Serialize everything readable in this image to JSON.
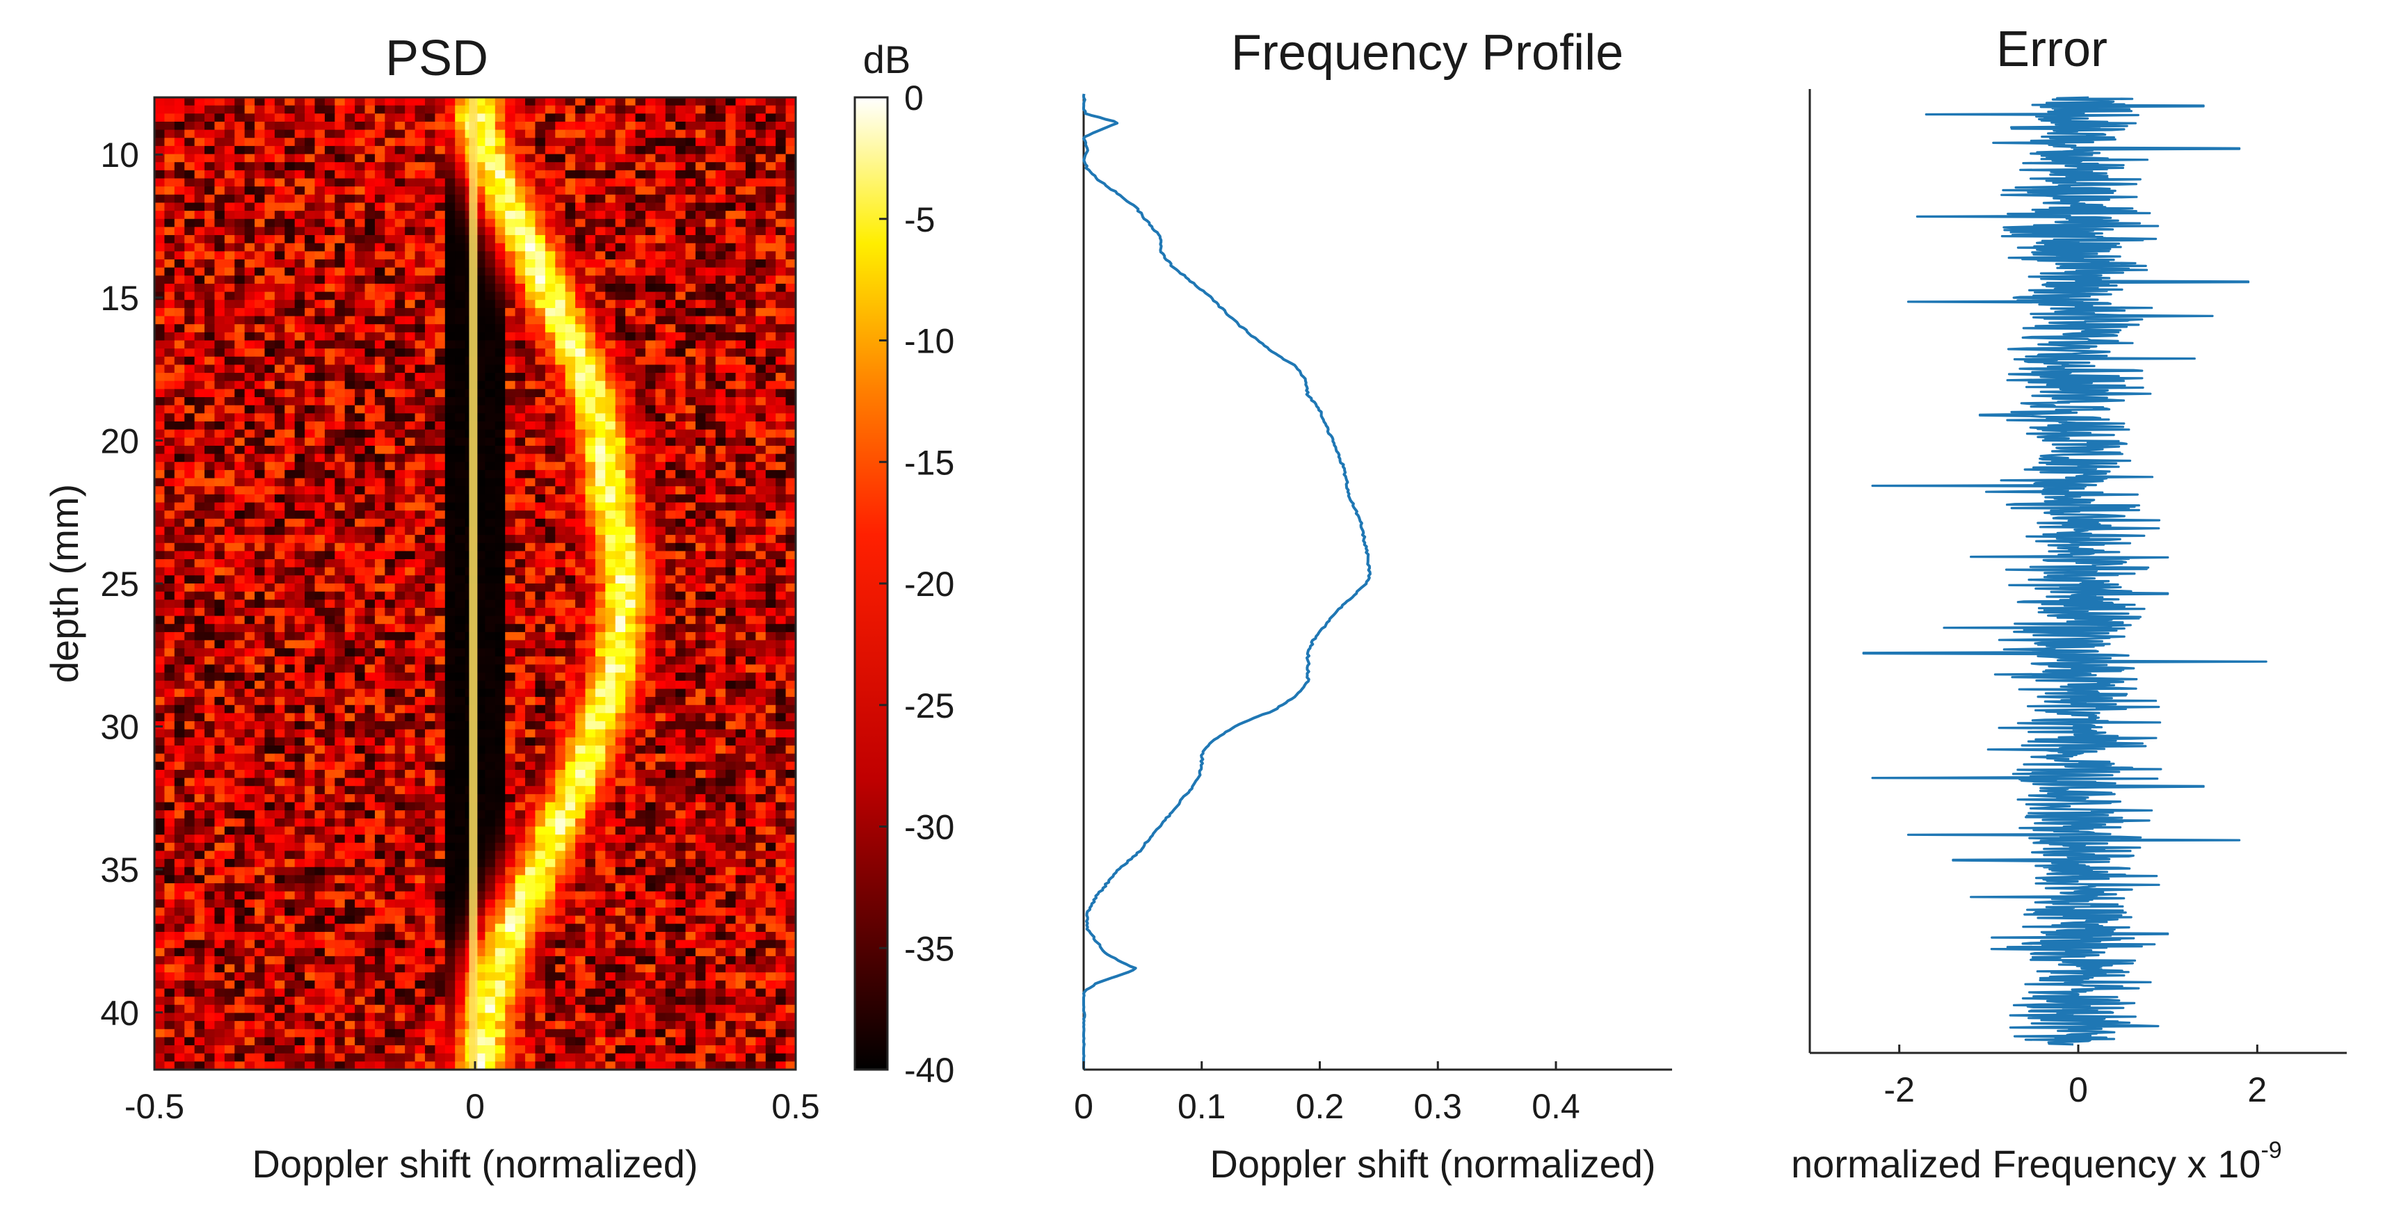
{
  "chart_data": [
    {
      "type": "heatmap",
      "title": "PSD",
      "xlabel": "Doppler shift (normalized)",
      "ylabel": "depth (mm)",
      "xlim": [
        -0.5,
        0.5
      ],
      "ylim": [
        8,
        42
      ],
      "xticks": [
        -0.5,
        0,
        0.5
      ],
      "xtick_labels": [
        "-0.5",
        "0",
        "0.5"
      ],
      "yticks": [
        10,
        15,
        20,
        25,
        30,
        35,
        40
      ],
      "ytick_labels": [
        "10",
        "15",
        "20",
        "25",
        "30",
        "35",
        "40"
      ],
      "colormap": "hot",
      "colorbar": {
        "label": "dB",
        "range": [
          -40,
          0
        ],
        "ticks": [
          0,
          -5,
          -10,
          -15,
          -20,
          -25,
          -30,
          -35,
          -40
        ],
        "tick_labels": [
          "0",
          "-5",
          "-10",
          "-15",
          "-20",
          "-25",
          "-30",
          "-35",
          "-40"
        ]
      },
      "ridge_depth_mm": [
        9,
        10,
        12,
        14,
        16,
        18,
        20,
        22,
        24,
        25,
        26,
        28,
        30,
        32,
        34,
        36,
        38,
        40,
        42
      ],
      "ridge_doppler": [
        0.005,
        0.02,
        0.06,
        0.1,
        0.14,
        0.18,
        0.2,
        0.21,
        0.23,
        0.235,
        0.23,
        0.22,
        0.19,
        0.16,
        0.12,
        0.08,
        0.04,
        0.02,
        0.01
      ],
      "background_db": [
        -40,
        -20
      ],
      "dc_band_doppler": [
        -0.005,
        0.005
      ]
    },
    {
      "type": "line",
      "title": "Frequency Profile",
      "xlabel": "Doppler shift (normalized)",
      "ylabel": "",
      "xlim": [
        0,
        0.5
      ],
      "ylim": [
        8,
        42
      ],
      "xticks": [
        0,
        0.1,
        0.2,
        0.3,
        0.4
      ],
      "xtick_labels": [
        "0",
        "0.1",
        "0.2",
        "0.3",
        "0.4"
      ],
      "color": "#1f77b4",
      "series": [
        {
          "name": "profile",
          "depth": [
            8.0,
            8.3,
            8.5,
            8.7,
            9.0,
            9.5,
            10.0,
            10.3,
            10.6,
            11.0,
            11.5,
            12.0,
            12.5,
            13.0,
            13.5,
            14.0,
            14.5,
            15.0,
            16.0,
            17.0,
            17.5,
            18.0,
            18.5,
            19.0,
            20.0,
            21.0,
            22.0,
            23.0,
            24.0,
            24.8,
            25.0,
            25.5,
            26.0,
            26.5,
            27.0,
            27.5,
            28.0,
            28.5,
            29.0,
            29.5,
            30.0,
            30.5,
            31.0,
            31.5,
            32.0,
            32.5,
            33.0,
            33.5,
            34.0,
            34.5,
            35.0,
            35.5,
            36.0,
            36.5,
            37.0,
            37.5,
            38.0,
            38.5,
            39.0,
            39.3,
            39.6,
            40.0,
            40.5,
            41.0,
            42.0
          ],
          "doppler": [
            0.0,
            0.001,
            0.0,
            0.002,
            0.03,
            0.0,
            0.004,
            0.0,
            0.003,
            0.012,
            0.03,
            0.045,
            0.055,
            0.065,
            0.065,
            0.075,
            0.09,
            0.105,
            0.13,
            0.16,
            0.18,
            0.188,
            0.19,
            0.2,
            0.21,
            0.22,
            0.225,
            0.235,
            0.24,
            0.242,
            0.24,
            0.228,
            0.215,
            0.205,
            0.195,
            0.19,
            0.19,
            0.19,
            0.18,
            0.16,
            0.13,
            0.11,
            0.1,
            0.1,
            0.095,
            0.085,
            0.075,
            0.065,
            0.055,
            0.045,
            0.03,
            0.02,
            0.01,
            0.004,
            0.002,
            0.01,
            0.02,
            0.045,
            0.01,
            0.0,
            0.0,
            0.0,
            0.0,
            0.0,
            0.0
          ]
        }
      ]
    },
    {
      "type": "line",
      "title": "Error",
      "xlabel": "normalized Frequency x 10",
      "xlabel_exponent": "-9",
      "ylabel": "",
      "xlim": [
        -3,
        3
      ],
      "ylim": [
        8,
        42
      ],
      "xticks": [
        -2,
        0,
        2
      ],
      "xtick_labels": [
        "-2",
        "0",
        "2"
      ],
      "color": "#1f77b4",
      "series": [
        {
          "name": "error",
          "spikes": [
            {
              "depth": 8.6,
              "value": 1.4
            },
            {
              "depth": 8.9,
              "value": -1.7
            },
            {
              "depth": 10.1,
              "value": 1.8
            },
            {
              "depth": 12.5,
              "value": -1.8
            },
            {
              "depth": 14.8,
              "value": 1.9
            },
            {
              "depth": 15.5,
              "value": -1.9
            },
            {
              "depth": 16.0,
              "value": 1.5
            },
            {
              "depth": 17.5,
              "value": 1.3
            },
            {
              "depth": 19.5,
              "value": -1.1
            },
            {
              "depth": 22.0,
              "value": -2.3
            },
            {
              "depth": 23.5,
              "value": 0.9
            },
            {
              "depth": 24.5,
              "value": -1.2
            },
            {
              "depth": 25.8,
              "value": 1.0
            },
            {
              "depth": 27.0,
              "value": -1.5
            },
            {
              "depth": 27.9,
              "value": -2.4
            },
            {
              "depth": 28.2,
              "value": 2.1
            },
            {
              "depth": 29.8,
              "value": 0.9
            },
            {
              "depth": 32.3,
              "value": -2.3
            },
            {
              "depth": 32.6,
              "value": 1.4
            },
            {
              "depth": 34.3,
              "value": -1.9
            },
            {
              "depth": 34.5,
              "value": 1.8
            },
            {
              "depth": 35.2,
              "value": -1.4
            },
            {
              "depth": 36.5,
              "value": -1.2
            },
            {
              "depth": 37.8,
              "value": 1.0
            },
            {
              "depth": 40.0,
              "value": -0.5
            },
            {
              "depth": 41.5,
              "value": 0.4
            }
          ]
        }
      ]
    }
  ]
}
